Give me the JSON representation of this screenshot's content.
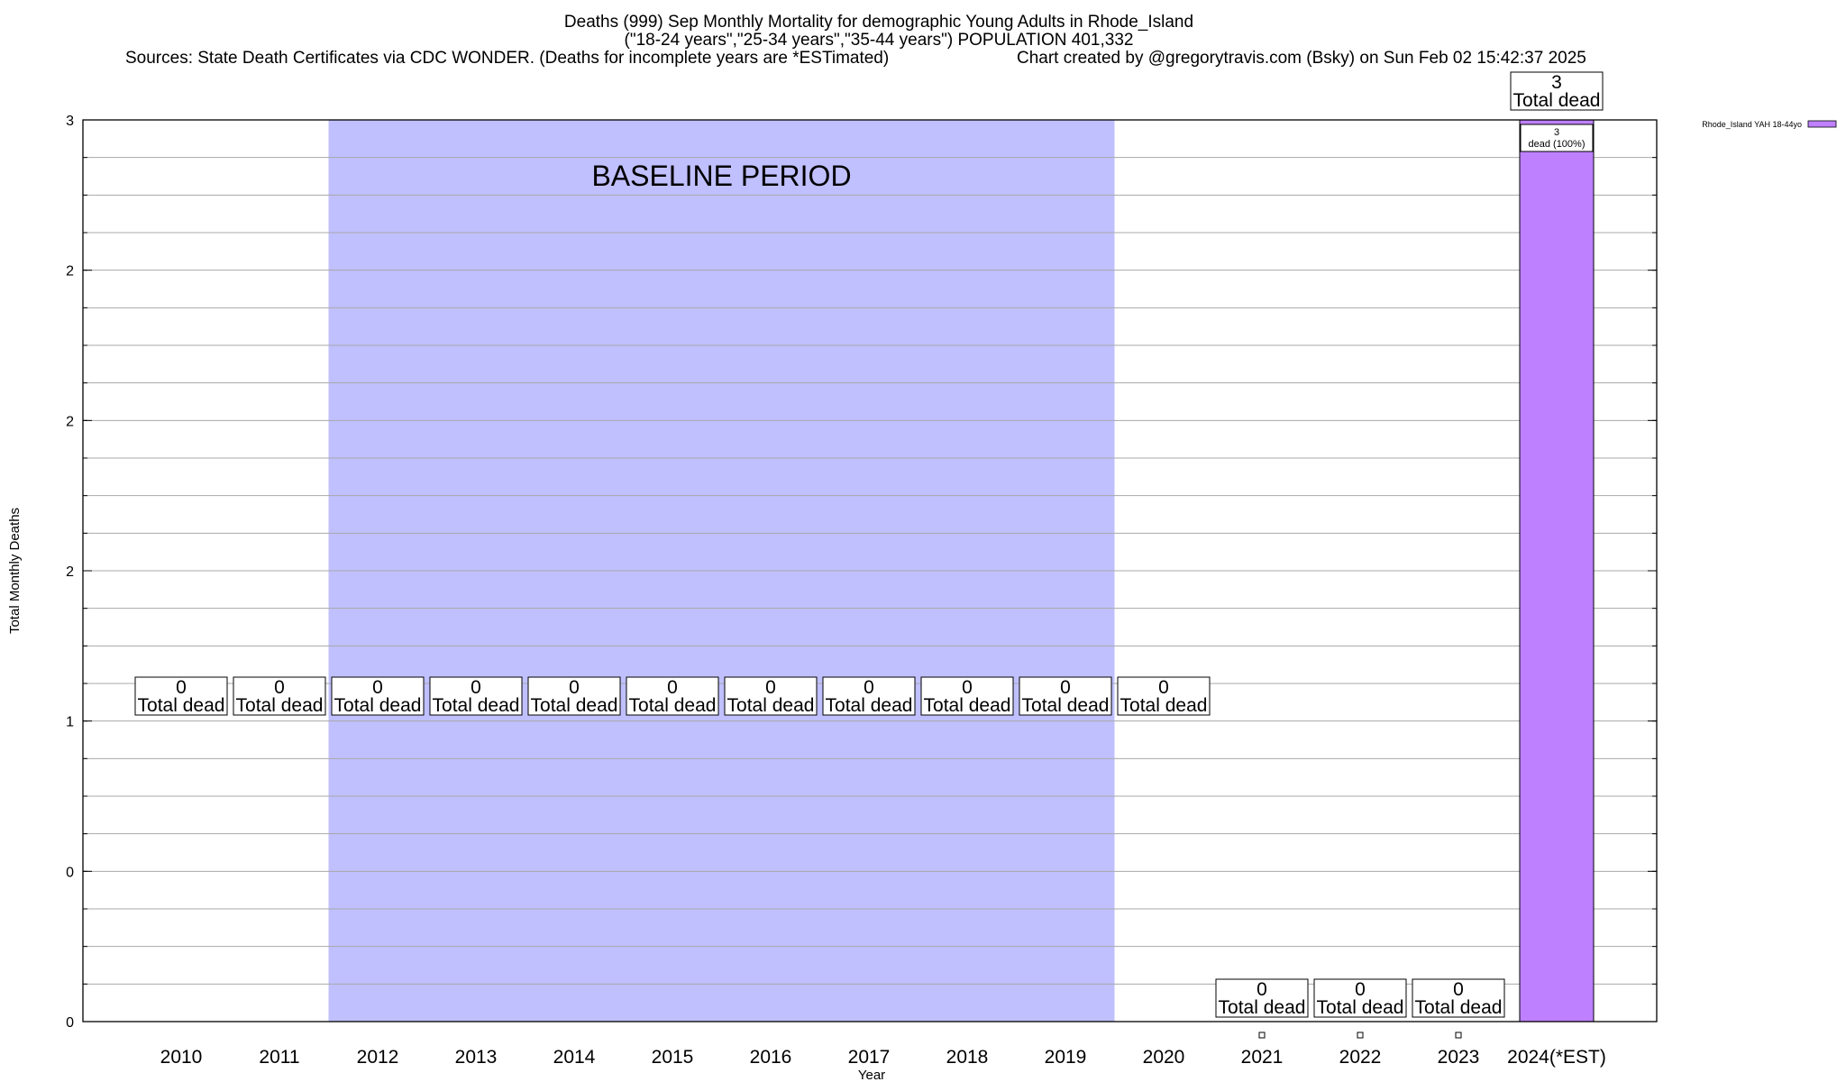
{
  "header": {
    "title_line1": "Deaths (999) Sep Monthly Mortality for demographic Young Adults in Rhode_Island",
    "title_line2": "(\"18-24 years\",\"25-34 years\",\"35-44 years\") POPULATION 401,332",
    "sources": "Sources: State Death Certificates via CDC WONDER. (Deaths for incomplete years are *ESTimated)",
    "credit": "Chart created by @gregorytravis.com (Bsky) on Sun Feb 02 15:42:37 2025"
  },
  "chart_data": {
    "type": "bar",
    "title": "Deaths (999) Sep Monthly Mortality for demographic Young Adults in Rhode_Island",
    "xlabel": "Year",
    "ylabel": "Total Monthly Deaths",
    "categories": [
      "2010",
      "2011",
      "2012",
      "2013",
      "2014",
      "2015",
      "2016",
      "2017",
      "2018",
      "2019",
      "2020",
      "2021",
      "2022",
      "2023",
      "2024(*EST)"
    ],
    "ylim": [
      0,
      3
    ],
    "y_tick_labels": [
      "0",
      "0",
      "1",
      "2",
      "2",
      "2",
      "3"
    ],
    "grid": true,
    "series": [
      {
        "name": "Rhode_Island YAH 18-44yo",
        "values": [
          0,
          0,
          0,
          0,
          0,
          0,
          0,
          0,
          0,
          0,
          0,
          0,
          0,
          0,
          3
        ],
        "color": "#bf80ff"
      }
    ],
    "annotations": {
      "total_labels": [
        "0",
        "0",
        "0",
        "0",
        "0",
        "0",
        "0",
        "0",
        "0",
        "0",
        "0",
        "0",
        "0",
        "0",
        "3"
      ],
      "total_suffix": "Total dead",
      "segment_label": [
        "3",
        "dead (100%)"
      ]
    },
    "baseline": {
      "label": "BASELINE PERIOD",
      "start": "2012",
      "end": "2019",
      "color": "#c0c0ff"
    },
    "legend_position": "top-right"
  }
}
